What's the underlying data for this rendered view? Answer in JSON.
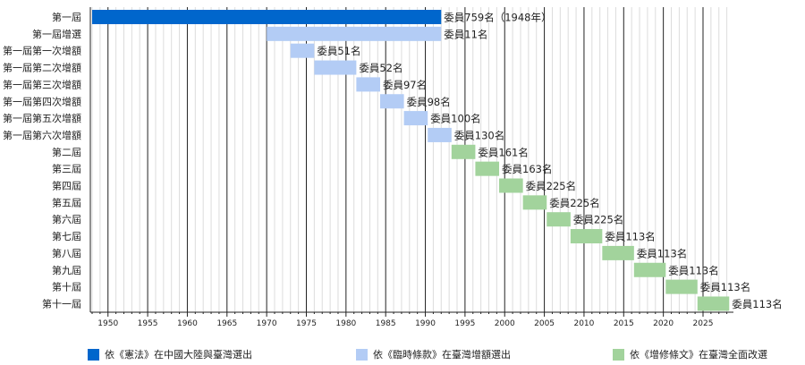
{
  "chart_data": {
    "type": "bar",
    "orientation": "horizontal-timeline",
    "title": "",
    "xlabel": "",
    "ylabel": "",
    "xlim": [
      1948,
      2030
    ],
    "x_ticks": [
      1950,
      1955,
      1960,
      1965,
      1970,
      1975,
      1980,
      1985,
      1990,
      1995,
      2000,
      2005,
      2010,
      2015,
      2020,
      2025
    ],
    "grid": true,
    "legend_position": "bottom",
    "legend": [
      {
        "key": "mainland",
        "label": "依《憲法》在中國大陸與臺灣選出",
        "color": "#0066cc"
      },
      {
        "key": "temporary",
        "label": "依《臨時條款》在臺灣增額選出",
        "color": "#b3ccf5"
      },
      {
        "key": "amendment",
        "label": "依《增修條文》在臺灣全面改選",
        "color": "#a2d39c"
      }
    ],
    "bars": [
      {
        "category": "第一屆",
        "start": 1948,
        "end": 1992,
        "group": "mainland",
        "label": "委員759名（1948年）"
      },
      {
        "category": "第一屆增選",
        "start": 1970,
        "end": 1992,
        "group": "temporary",
        "label": "委員11名"
      },
      {
        "category": "第一屆第一次增額",
        "start": 1973,
        "end": 1976,
        "group": "temporary",
        "label": "委員51名"
      },
      {
        "category": "第一屆第二次增額",
        "start": 1976,
        "end": 1981.3,
        "group": "temporary",
        "label": "委員52名"
      },
      {
        "category": "第一屆第三次增額",
        "start": 1981.3,
        "end": 1984.3,
        "group": "temporary",
        "label": "委員97名"
      },
      {
        "category": "第一屆第四次增額",
        "start": 1984.3,
        "end": 1987.3,
        "group": "temporary",
        "label": "委員98名"
      },
      {
        "category": "第一屆第五次增額",
        "start": 1987.3,
        "end": 1990.3,
        "group": "temporary",
        "label": "委員100名"
      },
      {
        "category": "第一屆第六次增額",
        "start": 1990.3,
        "end": 1993.3,
        "group": "temporary",
        "label": "委員130名"
      },
      {
        "category": "第二屆",
        "start": 1993.3,
        "end": 1996.3,
        "group": "amendment",
        "label": "委員161名"
      },
      {
        "category": "第三屆",
        "start": 1996.3,
        "end": 1999.3,
        "group": "amendment",
        "label": "委員163名"
      },
      {
        "category": "第四屆",
        "start": 1999.3,
        "end": 2002.3,
        "group": "amendment",
        "label": "委員225名"
      },
      {
        "category": "第五屆",
        "start": 2002.3,
        "end": 2005.3,
        "group": "amendment",
        "label": "委員225名"
      },
      {
        "category": "第六屆",
        "start": 2005.3,
        "end": 2008.3,
        "group": "amendment",
        "label": "委員225名"
      },
      {
        "category": "第七屆",
        "start": 2008.3,
        "end": 2012.3,
        "group": "amendment",
        "label": "委員113名"
      },
      {
        "category": "第八屆",
        "start": 2012.3,
        "end": 2016.3,
        "group": "amendment",
        "label": "委員113名"
      },
      {
        "category": "第九屆",
        "start": 2016.3,
        "end": 2020.3,
        "group": "amendment",
        "label": "委員113名"
      },
      {
        "category": "第十屆",
        "start": 2020.3,
        "end": 2024.3,
        "group": "amendment",
        "label": "委員113名"
      },
      {
        "category": "第十一屆",
        "start": 2024.3,
        "end": 2028.3,
        "group": "amendment",
        "label": "委員113名"
      }
    ]
  }
}
